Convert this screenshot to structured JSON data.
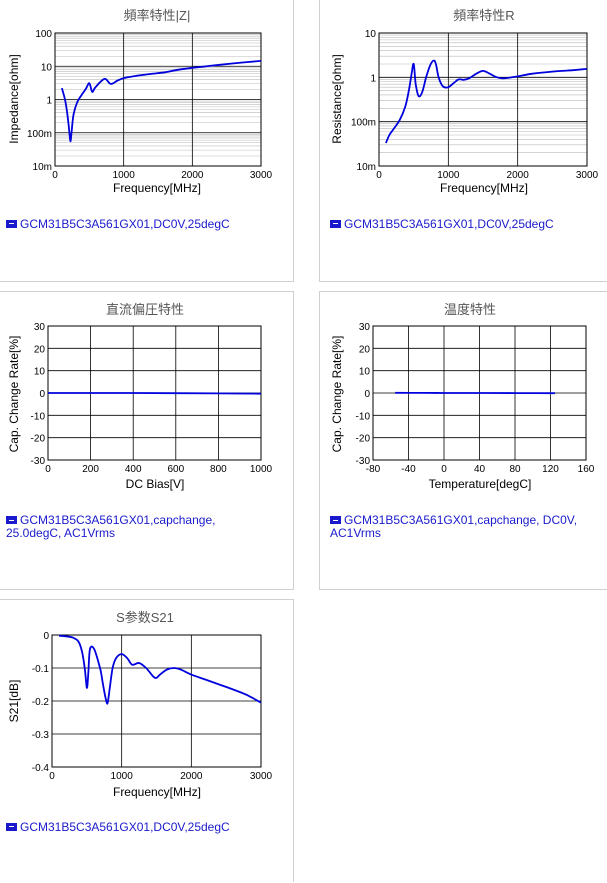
{
  "colors": {
    "series": "#0000dd",
    "legend": "#1a1acc",
    "grid_major": "#000000",
    "grid_minor": "#bbbbbb"
  },
  "charts": [
    {
      "id": "impedance",
      "title": "頻率特性|Z|",
      "ylabel": "Impedance[ohm]",
      "xlabel": "Frequency[MHz]",
      "legend": "GCM31B5C3A561GX01,DC0V,25degC",
      "x_ticks": [
        "0",
        "1000",
        "2000",
        "3000"
      ],
      "y_ticks": [
        "10m",
        "100m",
        "1",
        "10",
        "100"
      ]
    },
    {
      "id": "resistance",
      "title": "頻率特性R",
      "ylabel": "Resistance[ohm]",
      "xlabel": "Frequency[MHz]",
      "legend": "GCM31B5C3A561GX01,DC0V,25degC",
      "x_ticks": [
        "0",
        "1000",
        "2000",
        "3000"
      ],
      "y_ticks": [
        "10m",
        "100m",
        "1",
        "10"
      ]
    },
    {
      "id": "dc-bias",
      "title": "直流偏圧特性",
      "ylabel": "Cap. Change Rate[%]",
      "xlabel": "DC Bias[V]",
      "legend": "GCM31B5C3A561GX01,capchange, 25.0degC, AC1Vrms",
      "x_ticks": [
        "0",
        "200",
        "400",
        "600",
        "800",
        "1000"
      ],
      "y_ticks": [
        "-30",
        "-20",
        "-10",
        "0",
        "10",
        "20",
        "30"
      ]
    },
    {
      "id": "temperature",
      "title": "温度特性",
      "ylabel": "Cap. Change Rate[%]",
      "xlabel": "Temperature[degC]",
      "legend": "GCM31B5C3A561GX01,capchange, DC0V, AC1Vrms",
      "x_ticks": [
        "-80",
        "-40",
        "0",
        "40",
        "80",
        "120",
        "160"
      ],
      "y_ticks": [
        "-30",
        "-20",
        "-10",
        "0",
        "10",
        "20",
        "30"
      ]
    },
    {
      "id": "s21",
      "title": "S参数S21",
      "ylabel": "S21[dB]",
      "xlabel": "Frequency[MHz]",
      "legend": "GCM31B5C3A561GX01,DC0V,25degC",
      "x_ticks": [
        "0",
        "1000",
        "2000",
        "3000"
      ],
      "y_ticks": [
        "-0.4",
        "-0.3",
        "-0.2",
        "-0.1",
        "0"
      ]
    }
  ],
  "chart_data": [
    {
      "type": "line",
      "title": "頻率特性|Z|",
      "xlabel": "Frequency[MHz]",
      "ylabel": "Impedance[ohm]",
      "xlim": [
        0,
        3000
      ],
      "ylim": [
        0.01,
        100
      ],
      "yscale": "log",
      "grid": true,
      "series": [
        {
          "name": "GCM31B5C3A561GX01,DC0V,25degC",
          "x": [
            100,
            150,
            190,
            210,
            225,
            240,
            270,
            320,
            380,
            450,
            500,
            540,
            580,
            650,
            730,
            800,
            850,
            900,
            1000,
            1200,
            1400,
            1600,
            1800,
            2000,
            2300,
            2600,
            3000
          ],
          "y": [
            2.2,
            0.9,
            0.25,
            0.1,
            0.055,
            0.1,
            0.35,
            0.8,
            1.3,
            2.1,
            3.1,
            1.7,
            2.2,
            3.2,
            4.2,
            3.0,
            3.1,
            3.6,
            4.4,
            5.2,
            5.9,
            6.6,
            7.9,
            9.0,
            10.5,
            12.2,
            14.5
          ]
        }
      ]
    },
    {
      "type": "line",
      "title": "頻率特性R",
      "xlabel": "Frequency[MHz]",
      "ylabel": "Resistance[ohm]",
      "xlim": [
        0,
        3000
      ],
      "ylim": [
        0.01,
        10
      ],
      "yscale": "log",
      "grid": true,
      "series": [
        {
          "name": "GCM31B5C3A561GX01,DC0V,25degC",
          "x": [
            100,
            150,
            200,
            300,
            380,
            430,
            470,
            500,
            530,
            570,
            620,
            680,
            740,
            790,
            820,
            860,
            920,
            1000,
            1080,
            1150,
            1220,
            1300,
            1400,
            1500,
            1600,
            1700,
            1800,
            2000,
            2200,
            2500,
            2800,
            3000
          ],
          "y": [
            0.033,
            0.05,
            0.065,
            0.11,
            0.22,
            0.5,
            1.2,
            2.0,
            0.7,
            0.38,
            0.45,
            1.0,
            1.9,
            2.4,
            2.0,
            1.0,
            0.63,
            0.6,
            0.75,
            0.9,
            0.88,
            0.95,
            1.2,
            1.4,
            1.2,
            1.0,
            0.95,
            1.05,
            1.2,
            1.35,
            1.45,
            1.55
          ]
        }
      ]
    },
    {
      "type": "line",
      "title": "直流偏圧特性",
      "xlabel": "DC Bias[V]",
      "ylabel": "Cap. Change Rate[%]",
      "xlim": [
        0,
        1000
      ],
      "ylim": [
        -30,
        30
      ],
      "grid": true,
      "series": [
        {
          "name": "GCM31B5C3A561GX01,capchange, 25.0degC, AC1Vrms",
          "x": [
            0,
            200,
            400,
            600,
            800,
            1000
          ],
          "y": [
            0,
            0,
            0,
            -0.1,
            -0.2,
            -0.3
          ]
        }
      ]
    },
    {
      "type": "line",
      "title": "温度特性",
      "xlabel": "Temperature[degC]",
      "ylabel": "Cap. Change Rate[%]",
      "xlim": [
        -80,
        160
      ],
      "ylim": [
        -30,
        30
      ],
      "grid": true,
      "series": [
        {
          "name": "GCM31B5C3A561GX01,capchange, DC0V, AC1Vrms",
          "x": [
            -55,
            -25,
            0,
            25,
            50,
            85,
            125
          ],
          "y": [
            0.1,
            0.05,
            0.02,
            0,
            -0.02,
            -0.05,
            -0.1
          ]
        }
      ]
    },
    {
      "type": "line",
      "title": "S参数S21",
      "xlabel": "Frequency[MHz]",
      "ylabel": "S21[dB]",
      "xlim": [
        0,
        3000
      ],
      "ylim": [
        -0.4,
        0
      ],
      "grid": true,
      "series": [
        {
          "name": "GCM31B5C3A561GX01,DC0V,25degC",
          "x": [
            100,
            200,
            300,
            380,
            430,
            470,
            500,
            520,
            540,
            570,
            610,
            650,
            700,
            740,
            780,
            800,
            830,
            870,
            920,
            1000,
            1080,
            1150,
            1250,
            1350,
            1450,
            1500,
            1550,
            1650,
            1750,
            1850,
            2000,
            2200,
            2400,
            2600,
            2800,
            3000
          ],
          "y": [
            -0.002,
            -0.004,
            -0.008,
            -0.02,
            -0.05,
            -0.1,
            -0.16,
            -0.12,
            -0.05,
            -0.035,
            -0.045,
            -0.07,
            -0.11,
            -0.16,
            -0.2,
            -0.205,
            -0.16,
            -0.1,
            -0.07,
            -0.058,
            -0.07,
            -0.09,
            -0.085,
            -0.1,
            -0.125,
            -0.13,
            -0.12,
            -0.105,
            -0.1,
            -0.105,
            -0.12,
            -0.135,
            -0.15,
            -0.165,
            -0.182,
            -0.205
          ]
        }
      ]
    }
  ]
}
